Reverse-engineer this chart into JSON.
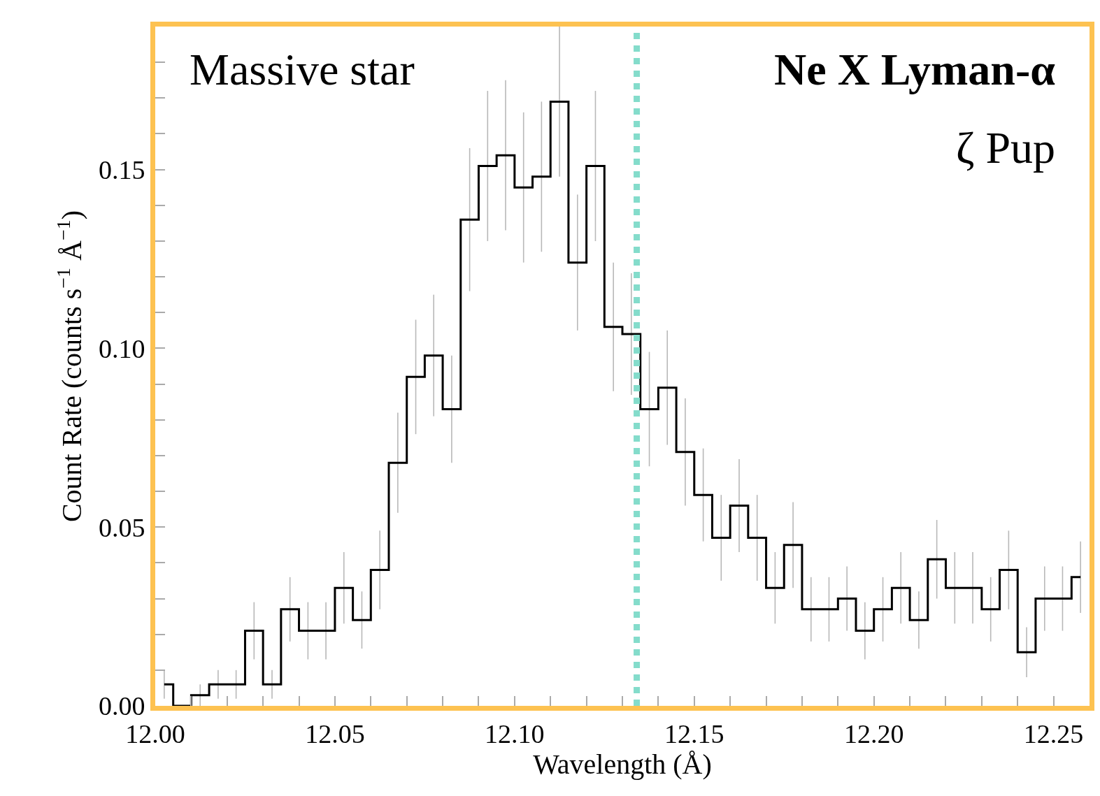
{
  "chart_data": {
    "type": "step",
    "xlabel": "Wavelength (Å)",
    "ylabel": "Count Rate (counts s$^{−1}$ Å$^{−1}$)",
    "annotations": [
      "Massive star",
      "Ne X Lyman-α",
      "ζ Pup"
    ],
    "x": [
      12.0025,
      12.0075,
      12.0125,
      12.0175,
      12.0225,
      12.0275,
      12.0325,
      12.0375,
      12.0425,
      12.0475,
      12.0525,
      12.0575,
      12.0625,
      12.0675,
      12.0725,
      12.0775,
      12.0825,
      12.0875,
      12.0925,
      12.0975,
      12.1025,
      12.1075,
      12.1125,
      12.1175,
      12.1225,
      12.1275,
      12.1325,
      12.1375,
      12.1425,
      12.1475,
      12.1525,
      12.1575,
      12.1625,
      12.1675,
      12.1725,
      12.1775,
      12.1825,
      12.1875,
      12.1925,
      12.1975,
      12.2025,
      12.2075,
      12.2125,
      12.2175,
      12.2225,
      12.2275,
      12.2325,
      12.2375,
      12.2425,
      12.2475,
      12.2525,
      12.2575
    ],
    "values": [
      0.006,
      0.0,
      0.003,
      0.006,
      0.006,
      0.021,
      0.006,
      0.027,
      0.021,
      0.021,
      0.033,
      0.024,
      0.038,
      0.068,
      0.092,
      0.098,
      0.083,
      0.136,
      0.151,
      0.154,
      0.145,
      0.148,
      0.169,
      0.124,
      0.151,
      0.106,
      0.104,
      0.083,
      0.089,
      0.071,
      0.059,
      0.047,
      0.056,
      0.047,
      0.033,
      0.045,
      0.027,
      0.027,
      0.03,
      0.021,
      0.027,
      0.033,
      0.024,
      0.041,
      0.033,
      0.033,
      0.027,
      0.038,
      0.015,
      0.03,
      0.03,
      0.036
    ],
    "errors": [
      0.004,
      null,
      0.003,
      0.004,
      0.004,
      0.008,
      0.004,
      0.009,
      0.008,
      0.008,
      0.01,
      0.008,
      0.011,
      0.014,
      0.016,
      0.017,
      0.015,
      0.02,
      0.021,
      0.021,
      0.021,
      0.021,
      0.021,
      0.019,
      0.021,
      0.018,
      0.017,
      0.016,
      0.016,
      0.015,
      0.013,
      0.012,
      0.013,
      0.012,
      0.01,
      0.012,
      0.009,
      0.009,
      0.009,
      0.008,
      0.009,
      0.01,
      0.008,
      0.011,
      0.01,
      0.01,
      0.009,
      0.011,
      0.007,
      0.009,
      0.009,
      0.01
    ],
    "color": "#000000",
    "ref_lines": [
      {
        "axis": "x",
        "value": 12.134,
        "color": "#84dccb",
        "line_style": "dotted"
      }
    ],
    "xlim": [
      12.0,
      12.26
    ],
    "ylim": [
      0,
      0.19
    ],
    "xticks": [
      {
        "value": 12.0,
        "label": "12.00"
      },
      {
        "value": 12.01,
        "label": null
      },
      {
        "value": 12.02,
        "label": null
      },
      {
        "value": 12.03,
        "label": null
      },
      {
        "value": 12.04,
        "label": null
      },
      {
        "value": 12.05,
        "label": "12.05"
      },
      {
        "value": 12.06,
        "label": null
      },
      {
        "value": 12.07,
        "label": null
      },
      {
        "value": 12.08,
        "label": null
      },
      {
        "value": 12.09,
        "label": null
      },
      {
        "value": 12.1,
        "label": "12.10"
      },
      {
        "value": 12.11,
        "label": null
      },
      {
        "value": 12.12,
        "label": null
      },
      {
        "value": 12.13,
        "label": null
      },
      {
        "value": 12.14,
        "label": null
      },
      {
        "value": 12.15,
        "label": "12.15"
      },
      {
        "value": 12.16,
        "label": null
      },
      {
        "value": 12.17,
        "label": null
      },
      {
        "value": 12.18,
        "label": null
      },
      {
        "value": 12.19,
        "label": null
      },
      {
        "value": 12.2,
        "label": "12.20"
      },
      {
        "value": 12.21,
        "label": null
      },
      {
        "value": 12.22,
        "label": null
      },
      {
        "value": 12.23,
        "label": null
      },
      {
        "value": 12.24,
        "label": null
      },
      {
        "value": 12.25,
        "label": "12.25"
      }
    ],
    "yticks": [
      {
        "value": 0,
        "label": "0.00"
      },
      {
        "value": 0.01,
        "label": null
      },
      {
        "value": 0.02,
        "label": null
      },
      {
        "value": 0.03,
        "label": null
      },
      {
        "value": 0.04,
        "label": null
      },
      {
        "value": 0.05,
        "label": "0.05"
      },
      {
        "value": 0.06,
        "label": null
      },
      {
        "value": 0.07,
        "label": null
      },
      {
        "value": 0.08,
        "label": null
      },
      {
        "value": 0.09,
        "label": null
      },
      {
        "value": 0.1,
        "label": "0.10"
      },
      {
        "value": 0.11,
        "label": null
      },
      {
        "value": 0.12,
        "label": null
      },
      {
        "value": 0.13,
        "label": null
      },
      {
        "value": 0.14,
        "label": null
      },
      {
        "value": 0.15,
        "label": "0.15"
      },
      {
        "value": 0.16,
        "label": null
      },
      {
        "value": 0.17,
        "label": null
      },
      {
        "value": 0.18,
        "label": null
      }
    ],
    "grid": false
  }
}
